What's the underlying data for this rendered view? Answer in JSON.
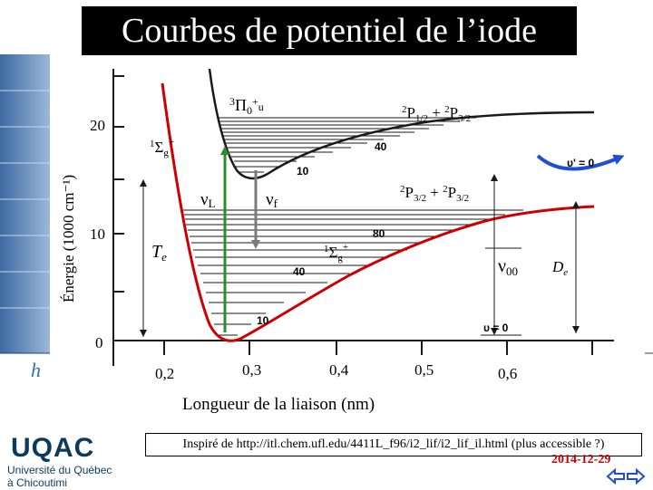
{
  "title": "Courbes de potentiel de l’iode",
  "y_axis": {
    "title": "Énergie (1000 cm⁻¹)",
    "ticks": [
      "0",
      "10",
      "20"
    ]
  },
  "x_axis": {
    "title": "Longueur de la liaison (nm)",
    "ticks": [
      "0,2",
      "0,3",
      "0,4",
      "0,5",
      "0,6"
    ]
  },
  "labels": {
    "upper_state": "³Π₀⁺ᵤ",
    "upper_state_parts": [
      "3",
      "Π",
      "0",
      "+",
      "u"
    ],
    "upper_dissociation": [
      "2",
      "P",
      "1/2",
      "+",
      "2",
      "P",
      "3/2"
    ],
    "lower_dissociation": [
      "2",
      "P",
      "3/2",
      "+",
      "2",
      "P",
      "3/2"
    ],
    "ground_state_left": [
      "1",
      "Σ",
      "g",
      "+"
    ],
    "ground_state_right": [
      "1",
      "Σ",
      "g",
      "+"
    ],
    "nu_L": [
      "ν",
      "L"
    ],
    "nu_f": [
      "ν",
      "f"
    ],
    "Te": [
      "T",
      "e"
    ],
    "nu00": [
      "ν",
      "00"
    ],
    "De": [
      "D",
      "e"
    ],
    "upper_v_labels": [
      "10",
      "40"
    ],
    "upper_v0": "υ' = 0",
    "ground_v_labels": [
      "10",
      "40",
      "80"
    ],
    "ground_v0": "υ = 0"
  },
  "credit": "Inspiré de http://itl.chem.ufl.edu/4411L_f96/i2_lif/i2_lif_il.html (plus accessible ?)",
  "date": "2014-12-29",
  "logo": {
    "name": "UQAC",
    "line1": "Université du Québec",
    "line2": "à Chicoutimi"
  },
  "side_letter": "h",
  "colors": {
    "curve": "#cc0000",
    "upper_curve": "#1a1a1a",
    "vibrational_levels": "#1a1a1a",
    "laser_arrow": "#2e8b2e",
    "fluorescence_arrow": "#7a7a7a",
    "blue_arrow": "#1f4fd0",
    "title_bg": "#000000",
    "title_fg": "#ffffff",
    "date": "#cc0000",
    "logo": "#0b3a5e"
  }
}
